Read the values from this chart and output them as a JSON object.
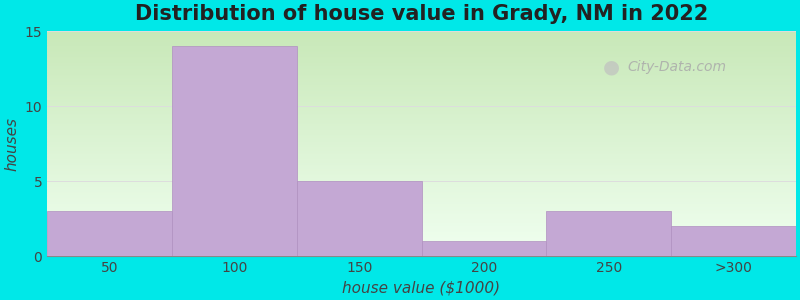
{
  "title": "Distribution of house value in Grady, NM in 2022",
  "xlabel": "house value ($1000)",
  "ylabel": "houses",
  "categories": [
    "50",
    "100",
    "150",
    "200",
    "250",
    ">300"
  ],
  "values": [
    3,
    14,
    5,
    1,
    3,
    2
  ],
  "bar_color": "#c4a8d4",
  "bar_edgecolor": "#b090c0",
  "ylim": [
    0,
    15
  ],
  "yticks": [
    0,
    5,
    10,
    15
  ],
  "background_outer": "#00e8e8",
  "grad_top_left": "#c8e8b8",
  "grad_bottom_right": "#f0fff0",
  "grid_color": "#dddddd",
  "title_fontsize": 15,
  "axis_label_fontsize": 11,
  "tick_fontsize": 10,
  "watermark": "City-Data.com",
  "bar_width": 1.0
}
